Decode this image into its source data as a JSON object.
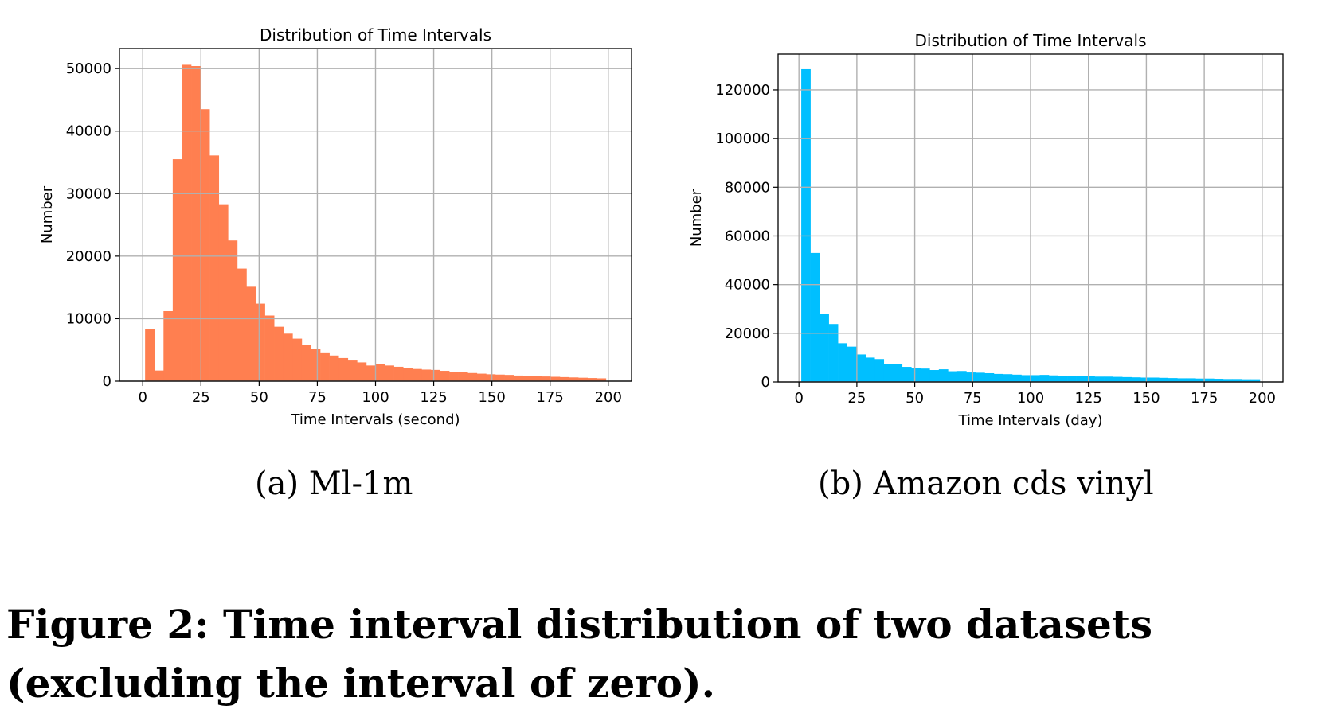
{
  "chart_data": [
    {
      "type": "bar",
      "title": "Distribution of Time Intervals",
      "xlabel": "Time Intervals (second)",
      "ylabel": "Number",
      "color": "#ff7f50",
      "xlim": [
        -10,
        210
      ],
      "ylim": [
        0,
        53200
      ],
      "xticks": [
        0,
        25,
        50,
        75,
        100,
        125,
        150,
        175,
        200
      ],
      "yticks": [
        0,
        10000,
        20000,
        30000,
        40000,
        50000
      ],
      "grid": true,
      "bin_start": 1,
      "bin_width": 3.96,
      "values": [
        8400,
        1700,
        11200,
        35500,
        50600,
        50400,
        43500,
        36100,
        28300,
        22500,
        18000,
        15100,
        12400,
        10500,
        8700,
        7600,
        6800,
        5800,
        5100,
        4600,
        4100,
        3700,
        3300,
        3000,
        2500,
        2800,
        2500,
        2300,
        2100,
        1950,
        1850,
        1800,
        1650,
        1500,
        1400,
        1300,
        1200,
        1100,
        1050,
        1000,
        900,
        850,
        800,
        750,
        700,
        650,
        600,
        550,
        500,
        450
      ]
    },
    {
      "type": "bar",
      "title": "Distribution of Time Intervals",
      "xlabel": "Time Intervals (day)",
      "ylabel": "Number",
      "color": "#00bfff",
      "xlim": [
        -9,
        209
      ],
      "ylim": [
        0,
        134700
      ],
      "xticks": [
        0,
        25,
        50,
        75,
        100,
        125,
        150,
        175,
        200
      ],
      "yticks": [
        0,
        20000,
        40000,
        60000,
        80000,
        100000,
        120000
      ],
      "grid": true,
      "bin_start": 1,
      "bin_width": 3.96,
      "values": [
        128500,
        53000,
        28000,
        23800,
        15900,
        14500,
        11300,
        10000,
        9400,
        7200,
        7200,
        6200,
        5800,
        5500,
        4900,
        5200,
        4400,
        4500,
        3900,
        3800,
        3600,
        3300,
        3200,
        3000,
        2800,
        2800,
        2900,
        2700,
        2600,
        2500,
        2400,
        2300,
        2200,
        2200,
        2100,
        2000,
        1900,
        1800,
        1800,
        1700,
        1600,
        1500,
        1500,
        1400,
        1400,
        1300,
        1200,
        1200,
        1100,
        1100
      ]
    }
  ],
  "subcaptions": [
    "(a)  Ml-1m",
    "(b)  Amazon cds vinyl"
  ],
  "caption": "Figure 2: Time interval distribution of two datasets (excluding the interval of zero)."
}
